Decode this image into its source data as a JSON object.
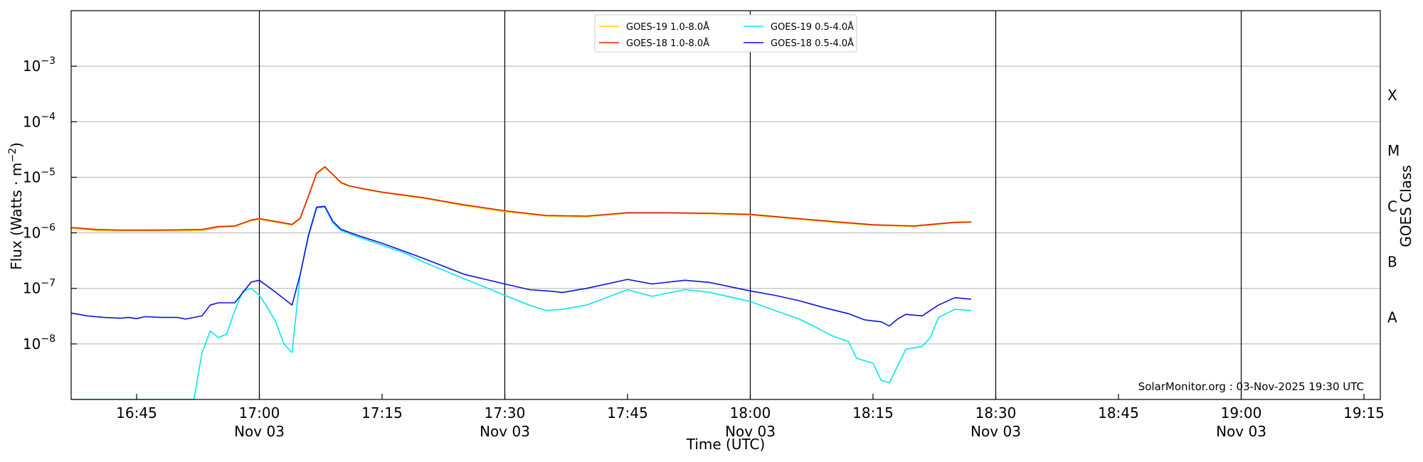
{
  "chart_data": {
    "type": "line",
    "y_scale": "log",
    "ylim": [
      1e-09,
      0.01
    ],
    "grid": "horizontal",
    "legend_position": "top-center",
    "ylabel_main": "Flux (Watts · m",
    "ylabel_exp": "−2",
    "ylabel_close": ")",
    "xlabel": "Time (UTC)",
    "right_ylabel": "GOES Class",
    "credit": "SolarMonitor.org : 03-Nov-2025 19:30 UTC",
    "x_range": [
      "16:37",
      "19:17"
    ],
    "x_ticks": [
      {
        "time": "16:45",
        "date": ""
      },
      {
        "time": "17:00",
        "date": "Nov 03"
      },
      {
        "time": "17:15",
        "date": ""
      },
      {
        "time": "17:30",
        "date": "Nov 03"
      },
      {
        "time": "17:45",
        "date": ""
      },
      {
        "time": "18:00",
        "date": "Nov 03"
      },
      {
        "time": "18:15",
        "date": ""
      },
      {
        "time": "18:30",
        "date": "Nov 03"
      },
      {
        "time": "18:45",
        "date": ""
      },
      {
        "time": "19:00",
        "date": "Nov 03"
      },
      {
        "time": "19:15",
        "date": ""
      }
    ],
    "vertical_lines": [
      "17:00",
      "17:30",
      "18:00",
      "18:30",
      "19:00"
    ],
    "y_ticks": [
      {
        "value": 1e-08,
        "mantissa": "10",
        "exponent": "−8"
      },
      {
        "value": 1e-07,
        "mantissa": "10",
        "exponent": "−7"
      },
      {
        "value": 1e-06,
        "mantissa": "10",
        "exponent": "−6"
      },
      {
        "value": 1e-05,
        "mantissa": "10",
        "exponent": "−5"
      },
      {
        "value": 0.0001,
        "mantissa": "10",
        "exponent": "−4"
      },
      {
        "value": 0.001,
        "mantissa": "10",
        "exponent": "−3"
      }
    ],
    "goes_classes": [
      {
        "label": "A",
        "value": 3e-08
      },
      {
        "label": "B",
        "value": 3e-07
      },
      {
        "label": "C",
        "value": 3e-06
      },
      {
        "label": "M",
        "value": 3e-05
      },
      {
        "label": "X",
        "value": 0.0003
      }
    ],
    "series": [
      {
        "name": "GOES-19 1.0-8.0Å",
        "color": "#ffd000",
        "points": [
          [
            "16:37",
            1.2e-06
          ],
          [
            "16:40",
            1.1e-06
          ],
          [
            "16:43",
            1.08e-06
          ],
          [
            "16:46",
            1.08e-06
          ],
          [
            "16:50",
            1.08e-06
          ],
          [
            "16:53",
            1.1e-06
          ],
          [
            "16:55",
            1.25e-06
          ],
          [
            "16:57",
            1.3e-06
          ],
          [
            "16:59",
            1.65e-06
          ],
          [
            "17:00",
            1.75e-06
          ],
          [
            "17:02",
            1.55e-06
          ],
          [
            "17:04",
            1.38e-06
          ],
          [
            "17:05",
            1.8e-06
          ],
          [
            "17:06",
            4.5e-06
          ],
          [
            "17:07",
            1.15e-05
          ],
          [
            "17:08",
            1.5e-05
          ],
          [
            "17:09",
            1.1e-05
          ],
          [
            "17:10",
            7.8e-06
          ],
          [
            "17:11",
            6.9e-06
          ],
          [
            "17:13",
            6e-06
          ],
          [
            "17:15",
            5.3e-06
          ],
          [
            "17:20",
            4.2e-06
          ],
          [
            "17:25",
            3.1e-06
          ],
          [
            "17:30",
            2.4e-06
          ],
          [
            "17:35",
            2e-06
          ],
          [
            "17:40",
            1.95e-06
          ],
          [
            "17:45",
            2.25e-06
          ],
          [
            "17:50",
            2.25e-06
          ],
          [
            "17:55",
            2.2e-06
          ],
          [
            "18:00",
            2.1e-06
          ],
          [
            "18:05",
            1.8e-06
          ],
          [
            "18:10",
            1.55e-06
          ],
          [
            "18:15",
            1.37e-06
          ],
          [
            "18:20",
            1.3e-06
          ],
          [
            "18:25",
            1.52e-06
          ],
          [
            "18:27",
            1.55e-06
          ]
        ]
      },
      {
        "name": "GOES-18 1.0-8.0Å",
        "color": "#e02000",
        "points": [
          [
            "16:37",
            1.25e-06
          ],
          [
            "16:40",
            1.15e-06
          ],
          [
            "16:43",
            1.12e-06
          ],
          [
            "16:46",
            1.12e-06
          ],
          [
            "16:50",
            1.13e-06
          ],
          [
            "16:53",
            1.15e-06
          ],
          [
            "16:55",
            1.3e-06
          ],
          [
            "16:57",
            1.33e-06
          ],
          [
            "16:59",
            1.7e-06
          ],
          [
            "17:00",
            1.8e-06
          ],
          [
            "17:02",
            1.6e-06
          ],
          [
            "17:04",
            1.42e-06
          ],
          [
            "17:05",
            1.85e-06
          ],
          [
            "17:06",
            4.6e-06
          ],
          [
            "17:07",
            1.18e-05
          ],
          [
            "17:08",
            1.55e-05
          ],
          [
            "17:09",
            1.12e-05
          ],
          [
            "17:10",
            8e-06
          ],
          [
            "17:11",
            7e-06
          ],
          [
            "17:13",
            6.1e-06
          ],
          [
            "17:15",
            5.4e-06
          ],
          [
            "17:20",
            4.3e-06
          ],
          [
            "17:25",
            3.2e-06
          ],
          [
            "17:30",
            2.5e-06
          ],
          [
            "17:35",
            2.05e-06
          ],
          [
            "17:40",
            2e-06
          ],
          [
            "17:45",
            2.3e-06
          ],
          [
            "17:50",
            2.3e-06
          ],
          [
            "17:55",
            2.25e-06
          ],
          [
            "18:00",
            2.15e-06
          ],
          [
            "18:05",
            1.85e-06
          ],
          [
            "18:10",
            1.6e-06
          ],
          [
            "18:15",
            1.4e-06
          ],
          [
            "18:20",
            1.33e-06
          ],
          [
            "18:25",
            1.55e-06
          ],
          [
            "18:27",
            1.57e-06
          ]
        ]
      },
      {
        "name": "GOES-19 0.5-4.0Å",
        "color": "#00e8f0",
        "points": [
          [
            "16:37",
            1e-09
          ],
          [
            "16:52",
            1e-09
          ],
          [
            "16:53",
            7e-09
          ],
          [
            "16:54",
            1.7e-08
          ],
          [
            "16:55",
            1.3e-08
          ],
          [
            "16:56",
            1.5e-08
          ],
          [
            "16:57",
            4e-08
          ],
          [
            "16:58",
            9e-08
          ],
          [
            "16:59",
            1e-07
          ],
          [
            "17:00",
            7.5e-08
          ],
          [
            "17:01",
            4.5e-08
          ],
          [
            "17:02",
            2.5e-08
          ],
          [
            "17:03",
            1e-08
          ],
          [
            "17:04",
            7e-09
          ],
          [
            "17:05",
            1.8e-07
          ],
          [
            "17:06",
            8.5e-07
          ],
          [
            "17:07",
            2.8e-06
          ],
          [
            "17:08",
            2.9e-06
          ],
          [
            "17:09",
            1.5e-06
          ],
          [
            "17:10",
            1.1e-06
          ],
          [
            "17:12",
            8.5e-07
          ],
          [
            "17:15",
            6e-07
          ],
          [
            "17:18",
            4.2e-07
          ],
          [
            "17:20",
            3e-07
          ],
          [
            "17:25",
            1.5e-07
          ],
          [
            "17:30",
            7.5e-08
          ],
          [
            "17:33",
            5e-08
          ],
          [
            "17:35",
            4e-08
          ],
          [
            "17:37",
            4.2e-08
          ],
          [
            "17:40",
            5e-08
          ],
          [
            "17:45",
            9.5e-08
          ],
          [
            "17:48",
            7.2e-08
          ],
          [
            "17:52",
            9.5e-08
          ],
          [
            "17:55",
            8.5e-08
          ],
          [
            "18:00",
            5.8e-08
          ],
          [
            "18:03",
            4e-08
          ],
          [
            "18:06",
            2.8e-08
          ],
          [
            "18:08",
            2e-08
          ],
          [
            "18:10",
            1.4e-08
          ],
          [
            "18:12",
            1.1e-08
          ],
          [
            "18:13",
            5.5e-09
          ],
          [
            "18:15",
            4.5e-09
          ],
          [
            "18:16",
            2.2e-09
          ],
          [
            "18:17",
            2e-09
          ],
          [
            "18:19",
            8e-09
          ],
          [
            "18:21",
            9e-09
          ],
          [
            "18:22",
            1.3e-08
          ],
          [
            "18:23",
            3e-08
          ],
          [
            "18:25",
            4.2e-08
          ],
          [
            "18:27",
            4e-08
          ]
        ]
      },
      {
        "name": "GOES-18 0.5-4.0Å",
        "color": "#1010dd",
        "points": [
          [
            "16:37",
            3.6e-08
          ],
          [
            "16:39",
            3.2e-08
          ],
          [
            "16:41",
            3e-08
          ],
          [
            "16:43",
            2.9e-08
          ],
          [
            "16:44",
            3e-08
          ],
          [
            "16:45",
            2.85e-08
          ],
          [
            "16:46",
            3.1e-08
          ],
          [
            "16:48",
            3e-08
          ],
          [
            "16:50",
            3e-08
          ],
          [
            "16:51",
            2.8e-08
          ],
          [
            "16:52",
            3e-08
          ],
          [
            "16:53",
            3.2e-08
          ],
          [
            "16:54",
            5e-08
          ],
          [
            "16:55",
            5.5e-08
          ],
          [
            "16:57",
            5.5e-08
          ],
          [
            "16:59",
            1.3e-07
          ],
          [
            "17:00",
            1.4e-07
          ],
          [
            "17:02",
            8.5e-08
          ],
          [
            "17:03",
            6.5e-08
          ],
          [
            "17:04",
            5e-08
          ],
          [
            "17:05",
            1.8e-07
          ],
          [
            "17:06",
            9e-07
          ],
          [
            "17:07",
            2.9e-06
          ],
          [
            "17:08",
            3e-06
          ],
          [
            "17:09",
            1.6e-06
          ],
          [
            "17:10",
            1.15e-06
          ],
          [
            "17:12",
            9e-07
          ],
          [
            "17:15",
            6.5e-07
          ],
          [
            "17:18",
            4.5e-07
          ],
          [
            "17:20",
            3.5e-07
          ],
          [
            "17:25",
            1.8e-07
          ],
          [
            "17:30",
            1.2e-07
          ],
          [
            "17:33",
            9.5e-08
          ],
          [
            "17:36",
            8.8e-08
          ],
          [
            "17:37",
            8.4e-08
          ],
          [
            "17:40",
            1e-07
          ],
          [
            "17:45",
            1.45e-07
          ],
          [
            "17:48",
            1.2e-07
          ],
          [
            "17:52",
            1.4e-07
          ],
          [
            "17:55",
            1.28e-07
          ],
          [
            "18:00",
            9e-08
          ],
          [
            "18:03",
            7.5e-08
          ],
          [
            "18:06",
            6e-08
          ],
          [
            "18:09",
            4.5e-08
          ],
          [
            "18:12",
            3.5e-08
          ],
          [
            "18:14",
            2.7e-08
          ],
          [
            "18:16",
            2.5e-08
          ],
          [
            "18:17",
            2.1e-08
          ],
          [
            "18:18",
            2.8e-08
          ],
          [
            "18:19",
            3.4e-08
          ],
          [
            "18:21",
            3.2e-08
          ],
          [
            "18:23",
            5e-08
          ],
          [
            "18:25",
            6.8e-08
          ],
          [
            "18:27",
            6.4e-08
          ]
        ]
      }
    ]
  }
}
